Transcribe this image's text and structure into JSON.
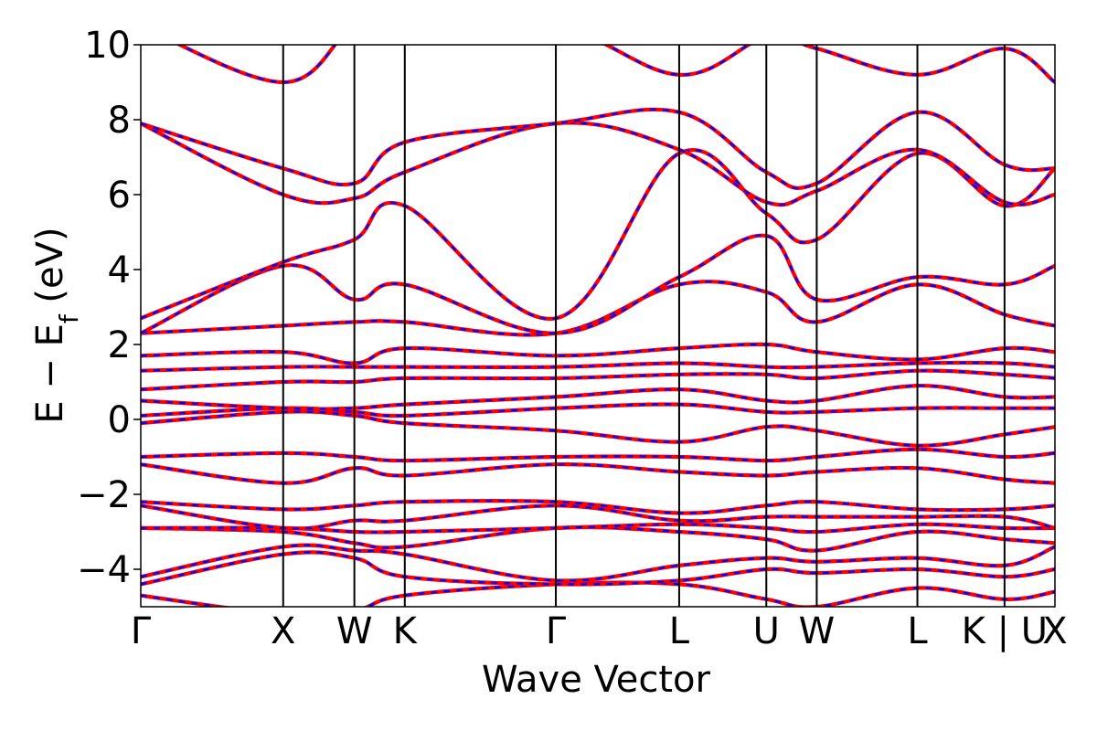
{
  "chart_data": {
    "type": "line",
    "title": "",
    "xlabel": "Wave Vector",
    "ylabel": "E − E",
    "ylabel_sub": "f",
    "ylabel_unit": " (eV)",
    "ylim": [
      -5,
      10
    ],
    "grid": false,
    "legend": "none",
    "yticks": [
      {
        "value": -4,
        "label": "−4"
      },
      {
        "value": -2,
        "label": "−2"
      },
      {
        "value": 0,
        "label": "0"
      },
      {
        "value": 2,
        "label": "2"
      },
      {
        "value": 4,
        "label": "4"
      },
      {
        "value": 6,
        "label": "6"
      },
      {
        "value": 8,
        "label": "8"
      },
      {
        "value": 10,
        "label": "10"
      }
    ],
    "high_symmetry_points": [
      {
        "label": "Γ",
        "x": 0.0
      },
      {
        "label": "X",
        "x": 1.0
      },
      {
        "label": "W",
        "x": 1.5
      },
      {
        "label": "K",
        "x": 1.854
      },
      {
        "label": "Γ",
        "x": 2.915
      },
      {
        "label": "L",
        "x": 3.781
      },
      {
        "label": "U",
        "x": 4.393
      },
      {
        "label": "W",
        "x": 4.747
      },
      {
        "label": "L",
        "x": 5.454
      },
      {
        "label": "K | U",
        "x": 6.066
      },
      {
        "label": "X",
        "x": 6.42
      }
    ],
    "x_range": [
      0,
      6.42
    ],
    "series_colors": {
      "series_a": "#ff0000",
      "series_b": "#0000ff"
    },
    "series_styles": {
      "series_a": "solid",
      "series_b": "dashed"
    },
    "bands": [
      {
        "x": [
          0,
          1.0,
          1.5,
          1.854,
          2.915,
          3.781,
          4.393,
          4.747,
          5.454,
          6.066,
          6.42
        ],
        "y": [
          -4.7,
          -5.2,
          -5.1,
          -4.7,
          -4.4,
          -4.4,
          -4.8,
          -5.0,
          -4.5,
          -4.8,
          -4.6
        ]
      },
      {
        "x": [
          0,
          1.0,
          1.5,
          1.854,
          2.915,
          3.781,
          4.393,
          4.747,
          5.454,
          6.066,
          6.42
        ],
        "y": [
          -4.4,
          -3.6,
          -3.7,
          -4.2,
          -4.4,
          -4.3,
          -4.0,
          -4.1,
          -4.0,
          -4.2,
          -4.0
        ]
      },
      {
        "x": [
          0,
          1.0,
          1.5,
          1.854,
          2.915,
          3.781,
          4.393,
          4.747,
          5.454,
          6.066,
          6.42
        ],
        "y": [
          -4.2,
          -3.4,
          -3.5,
          -3.6,
          -4.3,
          -3.9,
          -3.7,
          -3.8,
          -3.7,
          -3.9,
          -3.4
        ]
      },
      {
        "x": [
          0,
          1.0,
          1.5,
          1.854,
          2.915,
          3.781,
          4.393,
          4.747,
          5.454,
          6.066,
          6.42
        ],
        "y": [
          -2.9,
          -3.0,
          -3.3,
          -3.4,
          -2.9,
          -3.0,
          -3.2,
          -3.5,
          -3.0,
          -3.2,
          -3.3
        ]
      },
      {
        "x": [
          0,
          1.0,
          1.5,
          1.854,
          2.915,
          3.781,
          4.393,
          4.747,
          5.454,
          6.066,
          6.42
        ],
        "y": [
          -2.9,
          -2.9,
          -3.0,
          -3.0,
          -2.9,
          -2.8,
          -2.9,
          -3.0,
          -2.8,
          -2.9,
          -2.9
        ]
      },
      {
        "x": [
          0,
          1.0,
          1.5,
          1.854,
          2.915,
          3.781,
          4.393,
          4.747,
          5.454,
          6.066,
          6.42
        ],
        "y": [
          -2.3,
          -2.9,
          -2.7,
          -2.7,
          -2.3,
          -2.7,
          -2.6,
          -2.6,
          -2.6,
          -2.6,
          -2.9
        ]
      },
      {
        "x": [
          0,
          1.0,
          1.5,
          1.854,
          2.915,
          3.781,
          4.393,
          4.747,
          5.454,
          6.066,
          6.42
        ],
        "y": [
          -2.2,
          -2.4,
          -2.3,
          -2.2,
          -2.2,
          -2.5,
          -2.3,
          -2.2,
          -2.4,
          -2.4,
          -2.3
        ]
      },
      {
        "x": [
          0,
          1.0,
          1.5,
          1.854,
          2.915,
          3.781,
          4.393,
          4.747,
          5.454,
          6.066,
          6.42
        ],
        "y": [
          -1.2,
          -1.7,
          -1.3,
          -1.5,
          -1.2,
          -1.4,
          -1.5,
          -1.4,
          -1.3,
          -1.6,
          -1.7
        ]
      },
      {
        "x": [
          0,
          1.0,
          1.5,
          1.854,
          2.915,
          3.781,
          4.393,
          4.747,
          5.454,
          6.066,
          6.42
        ],
        "y": [
          -1.0,
          -0.9,
          -1.0,
          -1.1,
          -1.0,
          -1.0,
          -1.1,
          -1.0,
          -0.8,
          -1.0,
          -0.9
        ]
      },
      {
        "x": [
          0,
          1.0,
          1.5,
          1.854,
          2.915,
          3.781,
          4.393,
          4.747,
          5.454,
          6.066,
          6.42
        ],
        "y": [
          -0.1,
          0.2,
          0.1,
          -0.1,
          -0.3,
          -0.6,
          -0.2,
          -0.3,
          -0.7,
          -0.4,
          -0.2
        ]
      },
      {
        "x": [
          0,
          1.0,
          1.5,
          1.854,
          2.915,
          3.781,
          4.393,
          4.747,
          5.454,
          6.066,
          6.42
        ],
        "y": [
          0.1,
          0.3,
          0.2,
          0.1,
          0.3,
          0.4,
          0.2,
          0.2,
          0.3,
          0.3,
          0.3
        ]
      },
      {
        "x": [
          0,
          1.0,
          1.5,
          1.854,
          2.915,
          3.781,
          4.393,
          4.747,
          5.454,
          6.066,
          6.42
        ],
        "y": [
          0.5,
          0.3,
          0.3,
          0.4,
          0.6,
          0.8,
          0.5,
          0.5,
          0.9,
          0.6,
          0.6
        ]
      },
      {
        "x": [
          0,
          1.0,
          1.5,
          1.854,
          2.915,
          3.781,
          4.393,
          4.747,
          5.454,
          6.066,
          6.42
        ],
        "y": [
          0.8,
          1.0,
          1.0,
          1.1,
          1.1,
          1.2,
          1.2,
          1.1,
          1.3,
          1.2,
          1.1
        ]
      },
      {
        "x": [
          0,
          1.0,
          1.5,
          1.854,
          2.915,
          3.781,
          4.393,
          4.747,
          5.454,
          6.066,
          6.42
        ],
        "y": [
          1.3,
          1.4,
          1.4,
          1.4,
          1.4,
          1.5,
          1.4,
          1.4,
          1.5,
          1.5,
          1.4
        ]
      },
      {
        "x": [
          0,
          1.0,
          1.5,
          1.854,
          2.915,
          3.781,
          4.393,
          4.747,
          5.454,
          6.066,
          6.42
        ],
        "y": [
          1.7,
          1.8,
          1.5,
          1.9,
          1.7,
          1.9,
          2.0,
          1.8,
          1.6,
          1.9,
          1.8
        ]
      },
      {
        "x": [
          0,
          1.0,
          1.5,
          1.854,
          2.915,
          3.781,
          4.393,
          4.747,
          5.454,
          6.066,
          6.42
        ],
        "y": [
          2.3,
          2.5,
          2.6,
          2.6,
          2.3,
          3.6,
          3.4,
          2.6,
          3.6,
          2.8,
          2.5
        ]
      },
      {
        "x": [
          0,
          1.0,
          1.5,
          1.854,
          2.915,
          3.781,
          4.393,
          4.747,
          5.454,
          6.066,
          6.42
        ],
        "y": [
          2.3,
          4.1,
          3.2,
          3.6,
          2.3,
          3.8,
          4.9,
          3.2,
          3.8,
          3.6,
          4.1
        ]
      },
      {
        "x": [
          0,
          1.0,
          1.5,
          1.854,
          2.915,
          3.781,
          4.393,
          4.747,
          5.454,
          6.066,
          6.42
        ],
        "y": [
          2.7,
          4.2,
          4.8,
          5.7,
          2.7,
          7.1,
          5.5,
          4.8,
          7.1,
          5.7,
          6.7
        ]
      },
      {
        "x": [
          0,
          1.0,
          1.5,
          1.854,
          2.915,
          3.781,
          4.393,
          4.747,
          5.454,
          6.066,
          6.42
        ],
        "y": [
          7.9,
          6.0,
          5.9,
          6.6,
          7.9,
          7.2,
          5.8,
          6.1,
          7.2,
          5.8,
          6.0
        ]
      },
      {
        "x": [
          0,
          1.0,
          1.5,
          1.854,
          2.915,
          3.781,
          4.393,
          4.747,
          5.454,
          6.066,
          6.42
        ],
        "y": [
          7.9,
          6.7,
          6.3,
          7.4,
          7.9,
          8.2,
          6.6,
          6.3,
          8.2,
          6.8,
          6.7
        ]
      },
      {
        "x": [
          0,
          1.0,
          1.5,
          1.854,
          2.915,
          3.781,
          4.393,
          4.747,
          5.454,
          6.066,
          6.42
        ],
        "y": [
          10.5,
          9.0,
          10.5,
          10.5,
          10.5,
          9.2,
          10.2,
          9.9,
          9.2,
          9.9,
          9.0
        ]
      }
    ]
  }
}
